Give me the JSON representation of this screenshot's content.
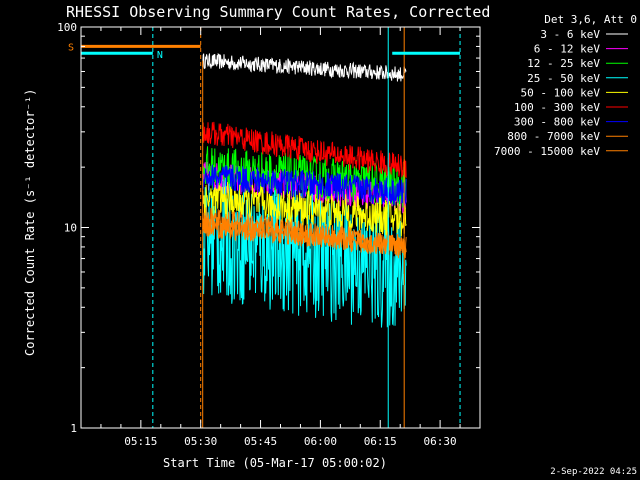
{
  "chart_data": {
    "type": "line",
    "title": "RHESSI Observing Summary Count Rates, Corrected",
    "xlabel": "Start Time (05-Mar-17 05:00:02)",
    "ylabel": "Corrected Count Rate (s⁻¹ detector⁻¹)",
    "yscale": "log",
    "ylim": [
      1,
      100
    ],
    "xlim_minutes": [
      0,
      100
    ],
    "xtick_minutes": [
      15,
      30,
      45,
      60,
      75,
      90
    ],
    "xticks": [
      "05:15",
      "05:30",
      "05:45",
      "06:00",
      "06:15",
      "06:30"
    ],
    "yticks": [
      {
        "value": 1,
        "label": "1"
      },
      {
        "value": 10,
        "label": "10"
      },
      {
        "value": 100,
        "label": "100"
      }
    ],
    "legend_title": "Det 3,6, Att 0",
    "legend_position": "right-outside",
    "data_window_minutes": [
      30.5,
      81.5
    ],
    "series": [
      {
        "name": "3 - 6 keV",
        "color": "#ffffff",
        "start": 68,
        "end": 58,
        "noise": 0.05
      },
      {
        "name": "6 - 12 keV",
        "color": "#ff00ff",
        "start": 18,
        "end": 14,
        "noise": 0.1
      },
      {
        "name": "12 - 25 keV",
        "color": "#00ff00",
        "start": 20,
        "end": 16,
        "noise": 0.14
      },
      {
        "name": "25 - 50 keV",
        "color": "#00ffff",
        "start": 9,
        "end": 6,
        "noise": 0.4
      },
      {
        "name": "50 - 100 keV",
        "color": "#ffff00",
        "start": 14,
        "end": 11,
        "noise": 0.12
      },
      {
        "name": "100 - 300 keV",
        "color": "#ff0000",
        "start": 30,
        "end": 20,
        "noise": 0.08
      },
      {
        "name": "300 - 800 keV",
        "color": "#0000ff",
        "start": 18,
        "end": 15,
        "noise": 0.09
      },
      {
        "name": "800 - 7000 keV",
        "color": "#ff8000",
        "start": 11,
        "end": 8,
        "noise": 0.08
      },
      {
        "name": "7000 - 15000 keV",
        "color": "#ff8000",
        "start": 10,
        "end": 8,
        "noise": 0.06
      }
    ],
    "flags": [
      {
        "label": "S",
        "color": "#ff8000",
        "level": 80,
        "intervals": [
          [
            0,
            30
          ]
        ]
      },
      {
        "label": "N",
        "color": "#00ffff",
        "level": 74,
        "intervals": [
          [
            0,
            18
          ],
          [
            78,
            95
          ]
        ]
      }
    ],
    "vertical_markers": [
      {
        "minute": 18,
        "color": "#00ffff",
        "style": "dashed"
      },
      {
        "minute": 30,
        "color": "#ff8000",
        "style": "dashed"
      },
      {
        "minute": 77,
        "color": "#00ffff",
        "style": "solid"
      },
      {
        "minute": 81,
        "color": "#ff8000",
        "style": "solid"
      },
      {
        "minute": 95,
        "color": "#00ffff",
        "style": "dashed"
      }
    ],
    "timestamp": "2-Sep-2022 04:25"
  }
}
